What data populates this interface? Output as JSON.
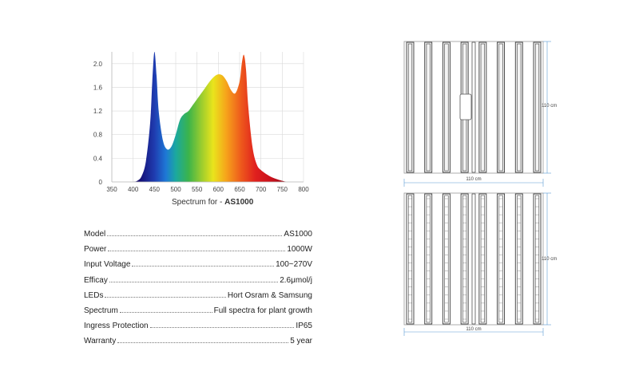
{
  "chart_data": {
    "type": "area",
    "title": "",
    "xlabel": "",
    "ylabel": "",
    "caption_prefix": "Spectrum for - ",
    "caption_model": "AS1000",
    "xlim": [
      350,
      800
    ],
    "ylim": [
      0,
      2.2
    ],
    "x_ticks": [
      350,
      400,
      450,
      500,
      550,
      600,
      650,
      700,
      750,
      800
    ],
    "y_ticks": [
      0,
      0.4,
      0.8,
      1.2,
      1.6,
      2.0
    ],
    "grid": true,
    "x": [
      400,
      410,
      420,
      430,
      440,
      445,
      450,
      455,
      460,
      470,
      480,
      490,
      500,
      510,
      520,
      530,
      540,
      550,
      560,
      570,
      580,
      590,
      600,
      610,
      620,
      630,
      640,
      650,
      655,
      660,
      665,
      670,
      680,
      690,
      700,
      720,
      740,
      760
    ],
    "values": [
      0.0,
      0.02,
      0.1,
      0.35,
      1.0,
      1.7,
      2.2,
      1.8,
      1.2,
      0.7,
      0.55,
      0.6,
      0.8,
      1.05,
      1.15,
      1.2,
      1.3,
      1.4,
      1.5,
      1.6,
      1.7,
      1.78,
      1.82,
      1.8,
      1.7,
      1.55,
      1.5,
      1.7,
      2.0,
      2.15,
      1.9,
      1.3,
      0.6,
      0.3,
      0.2,
      0.1,
      0.04,
      0.0
    ]
  },
  "specs": [
    {
      "label": "Model",
      "value": "AS1000"
    },
    {
      "label": "Power",
      "value": "1000W"
    },
    {
      "label": "Input Voltage",
      "value": "100~270V"
    },
    {
      "label": "Efficay",
      "value": "2.6μmol/j"
    },
    {
      "label": "LEDs",
      "value": "Hort Osram & Samsung"
    },
    {
      "label": "Spectrum",
      "value": "Full spectra for plant growth"
    },
    {
      "label": "Ingress Protection",
      "value": "IP65"
    },
    {
      "label": "Warranty",
      "value": "5 year"
    }
  ],
  "drawings": {
    "top": {
      "width_label": "110 cm",
      "height_label": "110 cm"
    },
    "bottom": {
      "width_label": "110 cm",
      "height_label": "110 cm"
    }
  },
  "colors": {
    "grid": "#d9d9d9",
    "dimension_line": "#5b9bd5",
    "fixture": "#3a3a3a"
  }
}
